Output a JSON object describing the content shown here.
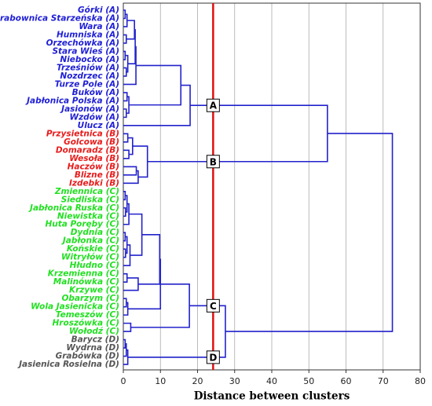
{
  "chart_data": {
    "type": "dendrogram",
    "x_label": "Distance between clusters",
    "labels": [
      "Górki (A)",
      "Grabownica Starzeńska (A)",
      "Wara (A)",
      "Humniska (A)",
      "Orzechówka (A)",
      "Stara Wieś (A)",
      "Niebocko (A)",
      "Trześniów (A)",
      "Nozdrzec (A)",
      "Turze Pole (A)",
      "Buków (A)",
      "Jabłonica Polska (A)",
      "Jasionów (A)",
      "Wzdów (A)",
      "Ulucz (A)",
      "Przysietnica (B)",
      "Golcowa (B)",
      "Domaradz (B)",
      "Wesoła (B)",
      "Haczów (B)",
      "Blizne (B)",
      "Izdebki (B)",
      "Zmiennica (C)",
      "Siedliska (C)",
      "Jabłonica Ruska (C)",
      "Niewistka (C)",
      "Huta Poręby (C)",
      "Dydnia (C)",
      "Jabłonka (C)",
      "Końskie (C)",
      "Witryłów (C)",
      "Hłudno (C)",
      "Krzemienna (C)",
      "Malinówka (C)",
      "Krzywe (C)",
      "Obarzym (C)",
      "Wola Jasienicka (C)",
      "Temeszów (C)",
      "Hroszówka (C)",
      "Wołodź (C)",
      "Barycz (D)",
      "Wydrna (D)",
      "Grabówka (D)",
      "Jasienica Rosielna (D)"
    ],
    "leaf_colors": [
      "#1f1fd6",
      "#1f1fd6",
      "#1f1fd6",
      "#1f1fd6",
      "#1f1fd6",
      "#1f1fd6",
      "#1f1fd6",
      "#1f1fd6",
      "#1f1fd6",
      "#1f1fd6",
      "#1f1fd6",
      "#1f1fd6",
      "#1f1fd6",
      "#1f1fd6",
      "#1f1fd6",
      "#e81c1c",
      "#e81c1c",
      "#e81c1c",
      "#e81c1c",
      "#e81c1c",
      "#e81c1c",
      "#e81c1c",
      "#22e022",
      "#22e022",
      "#22e022",
      "#22e022",
      "#22e022",
      "#22e022",
      "#22e022",
      "#22e022",
      "#22e022",
      "#22e022",
      "#22e022",
      "#22e022",
      "#22e022",
      "#22e022",
      "#22e022",
      "#22e022",
      "#22e022",
      "#22e022",
      "#555555",
      "#555555",
      "#555555",
      "#555555"
    ],
    "merges": [
      [
        0,
        1,
        0.5
      ],
      [
        44,
        2,
        1
      ],
      [
        3,
        4,
        0.8
      ],
      [
        45,
        46,
        3
      ],
      [
        5,
        6,
        0.5
      ],
      [
        7,
        8,
        0.8
      ],
      [
        48,
        49,
        1.2
      ],
      [
        47,
        50,
        3.2
      ],
      [
        51,
        9,
        3.4
      ],
      [
        10,
        11,
        1
      ],
      [
        12,
        13,
        0.8
      ],
      [
        53,
        54,
        1.5
      ],
      [
        52,
        55,
        15.5
      ],
      [
        56,
        14,
        18
      ],
      [
        15,
        16,
        1.2
      ],
      [
        17,
        18,
        1.5
      ],
      [
        58,
        59,
        2.5
      ],
      [
        19,
        20,
        3.5
      ],
      [
        61,
        21,
        4
      ],
      [
        60,
        62,
        6.5
      ],
      [
        57,
        63,
        55
      ],
      [
        22,
        23,
        0.5
      ],
      [
        24,
        25,
        0.6
      ],
      [
        65,
        66,
        1
      ],
      [
        67,
        26,
        1.5
      ],
      [
        27,
        28,
        0.5
      ],
      [
        29,
        30,
        0.6
      ],
      [
        69,
        70,
        1
      ],
      [
        71,
        31,
        1.8
      ],
      [
        32,
        33,
        1
      ],
      [
        73,
        34,
        4
      ],
      [
        68,
        72,
        5
      ],
      [
        75,
        74,
        9.8
      ],
      [
        35,
        36,
        0.8
      ],
      [
        77,
        37,
        1.2
      ],
      [
        76,
        78,
        10
      ],
      [
        38,
        39,
        2
      ],
      [
        79,
        80,
        17.8
      ],
      [
        40,
        41,
        0.5
      ],
      [
        82,
        42,
        0.8
      ],
      [
        83,
        43,
        1.2
      ],
      [
        81,
        84,
        27.5
      ],
      [
        64,
        85,
        72.5
      ]
    ],
    "line_color": "#2222cc",
    "cut_height": 24.2,
    "cut_color": "#e01010",
    "clusters": [
      {
        "label": "A",
        "node": 57
      },
      {
        "label": "B",
        "node": 63
      },
      {
        "label": "C",
        "node": 81
      },
      {
        "label": "D",
        "node": 84
      }
    ],
    "xlim": [
      0,
      80
    ],
    "xticks": [
      0,
      10,
      20,
      30,
      40,
      50,
      60,
      70,
      80
    ],
    "grid": true
  }
}
